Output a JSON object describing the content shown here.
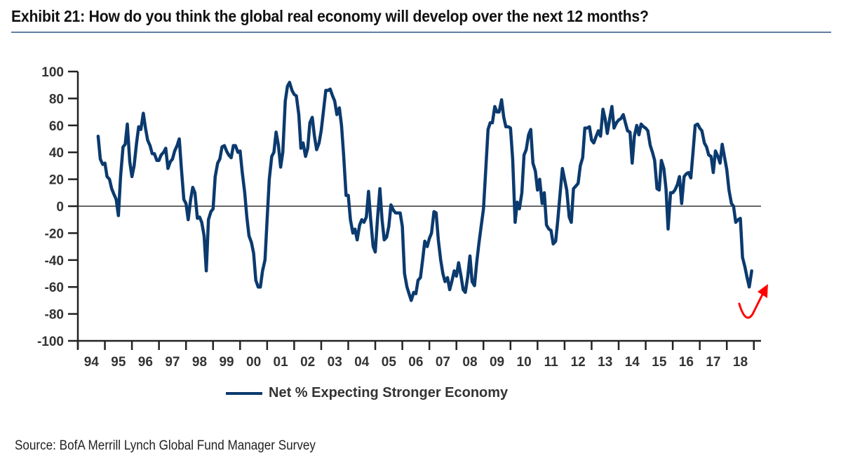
{
  "title": "Exhibit 21: How do you think the global real economy will develop over the next 12 months?",
  "source": "Source: BofA Merrill Lynch Global Fund Manager Survey",
  "colors": {
    "series": "#0b3a6e",
    "annotation_arrow": "#ff0000",
    "title_rule": "#5f7ea3",
    "axis": "#222222",
    "text": "#333333"
  },
  "chart_data": {
    "type": "line",
    "title": "How do you think the global real economy will develop over the next 12 months?",
    "xlabel": "",
    "ylabel": "",
    "ylim": [
      -100,
      100
    ],
    "xlim": [
      1994,
      2019
    ],
    "grid": false,
    "zero_line": true,
    "legend_position": "bottom-center",
    "y_ticks": [
      100,
      80,
      60,
      40,
      20,
      0,
      -20,
      -40,
      -60,
      -80,
      -100
    ],
    "x_tick_labels": [
      "94",
      "95",
      "96",
      "97",
      "98",
      "99",
      "00",
      "01",
      "02",
      "03",
      "04",
      "05",
      "06",
      "07",
      "08",
      "09",
      "10",
      "11",
      "12",
      "13",
      "14",
      "15",
      "16",
      "17",
      "18"
    ],
    "annotations": [
      {
        "type": "arrow",
        "description": "red upturn arrow indicating expected rebound",
        "near_x": 2018.9,
        "near_y": -75
      }
    ],
    "series": [
      {
        "name": "Net % Expecting Stronger Economy",
        "points": [
          [
            1994.75,
            52
          ],
          [
            1994.83,
            35
          ],
          [
            1994.92,
            31
          ],
          [
            1995.0,
            32
          ],
          [
            1995.08,
            22
          ],
          [
            1995.17,
            20
          ],
          [
            1995.25,
            13
          ],
          [
            1995.33,
            9
          ],
          [
            1995.42,
            5
          ],
          [
            1995.5,
            -7
          ],
          [
            1995.58,
            22
          ],
          [
            1995.67,
            44
          ],
          [
            1995.75,
            46
          ],
          [
            1995.83,
            61
          ],
          [
            1995.92,
            33
          ],
          [
            1996.0,
            22
          ],
          [
            1996.08,
            30
          ],
          [
            1996.17,
            47
          ],
          [
            1996.25,
            59
          ],
          [
            1996.33,
            57
          ],
          [
            1996.42,
            69
          ],
          [
            1996.5,
            58
          ],
          [
            1996.58,
            49
          ],
          [
            1996.67,
            45
          ],
          [
            1996.75,
            39
          ],
          [
            1996.83,
            39
          ],
          [
            1996.92,
            34
          ],
          [
            1997.0,
            34
          ],
          [
            1997.08,
            38
          ],
          [
            1997.17,
            40
          ],
          [
            1997.25,
            43
          ],
          [
            1997.33,
            28
          ],
          [
            1997.42,
            33
          ],
          [
            1997.5,
            35
          ],
          [
            1997.58,
            41
          ],
          [
            1997.67,
            45
          ],
          [
            1997.75,
            50
          ],
          [
            1997.83,
            28
          ],
          [
            1997.92,
            5
          ],
          [
            1998.0,
            2
          ],
          [
            1998.08,
            -10
          ],
          [
            1998.17,
            5
          ],
          [
            1998.25,
            14
          ],
          [
            1998.33,
            10
          ],
          [
            1998.42,
            -9
          ],
          [
            1998.5,
            -8
          ],
          [
            1998.58,
            -12
          ],
          [
            1998.67,
            -22
          ],
          [
            1998.75,
            -48
          ],
          [
            1998.83,
            -10
          ],
          [
            1998.92,
            -4
          ],
          [
            1999.0,
            -2
          ],
          [
            1999.08,
            22
          ],
          [
            1999.17,
            32
          ],
          [
            1999.25,
            35
          ],
          [
            1999.33,
            44
          ],
          [
            1999.42,
            45
          ],
          [
            1999.5,
            41
          ],
          [
            1999.58,
            38
          ],
          [
            1999.67,
            36
          ],
          [
            1999.75,
            45
          ],
          [
            1999.83,
            45
          ],
          [
            1999.92,
            40
          ],
          [
            2000.0,
            41
          ],
          [
            2000.08,
            25
          ],
          [
            2000.17,
            10
          ],
          [
            2000.25,
            -8
          ],
          [
            2000.33,
            -22
          ],
          [
            2000.42,
            -27
          ],
          [
            2000.5,
            -35
          ],
          [
            2000.58,
            -55
          ],
          [
            2000.67,
            -60
          ],
          [
            2000.75,
            -60
          ],
          [
            2000.83,
            -48
          ],
          [
            2000.92,
            -40
          ],
          [
            2001.0,
            -10
          ],
          [
            2001.08,
            20
          ],
          [
            2001.17,
            37
          ],
          [
            2001.25,
            40
          ],
          [
            2001.33,
            55
          ],
          [
            2001.42,
            45
          ],
          [
            2001.5,
            29
          ],
          [
            2001.58,
            40
          ],
          [
            2001.67,
            78
          ],
          [
            2001.75,
            89
          ],
          [
            2001.83,
            92
          ],
          [
            2001.92,
            86
          ],
          [
            2002.0,
            83
          ],
          [
            2002.08,
            82
          ],
          [
            2002.17,
            68
          ],
          [
            2002.25,
            43
          ],
          [
            2002.33,
            47
          ],
          [
            2002.42,
            37
          ],
          [
            2002.5,
            43
          ],
          [
            2002.58,
            62
          ],
          [
            2002.67,
            66
          ],
          [
            2002.75,
            52
          ],
          [
            2002.83,
            42
          ],
          [
            2002.92,
            47
          ],
          [
            2003.0,
            56
          ],
          [
            2003.08,
            70
          ],
          [
            2003.17,
            86
          ],
          [
            2003.25,
            86
          ],
          [
            2003.33,
            87
          ],
          [
            2003.42,
            82
          ],
          [
            2003.5,
            78
          ],
          [
            2003.58,
            68
          ],
          [
            2003.67,
            73
          ],
          [
            2003.75,
            60
          ],
          [
            2003.83,
            38
          ],
          [
            2003.92,
            8
          ],
          [
            2004.0,
            8
          ],
          [
            2004.08,
            -10
          ],
          [
            2004.17,
            -20
          ],
          [
            2004.25,
            -17
          ],
          [
            2004.33,
            -25
          ],
          [
            2004.42,
            -14
          ],
          [
            2004.5,
            -10
          ],
          [
            2004.58,
            -12
          ],
          [
            2004.67,
            -8
          ],
          [
            2004.75,
            11
          ],
          [
            2004.83,
            -10
          ],
          [
            2004.92,
            -30
          ],
          [
            2005.0,
            -34
          ],
          [
            2005.08,
            -10
          ],
          [
            2005.17,
            13
          ],
          [
            2005.25,
            -10
          ],
          [
            2005.33,
            -25
          ],
          [
            2005.42,
            -23
          ],
          [
            2005.5,
            -15
          ],
          [
            2005.58,
            1
          ],
          [
            2005.67,
            -3
          ],
          [
            2005.75,
            -5
          ],
          [
            2005.83,
            -5
          ],
          [
            2005.92,
            -5
          ],
          [
            2006.0,
            -15
          ],
          [
            2006.08,
            -50
          ],
          [
            2006.17,
            -60
          ],
          [
            2006.25,
            -65
          ],
          [
            2006.33,
            -70
          ],
          [
            2006.42,
            -64
          ],
          [
            2006.5,
            -65
          ],
          [
            2006.58,
            -55
          ],
          [
            2006.67,
            -53
          ],
          [
            2006.75,
            -40
          ],
          [
            2006.83,
            -26
          ],
          [
            2006.92,
            -30
          ],
          [
            2007.0,
            -24
          ],
          [
            2007.08,
            -20
          ],
          [
            2007.17,
            -4
          ],
          [
            2007.25,
            -5
          ],
          [
            2007.33,
            -25
          ],
          [
            2007.42,
            -40
          ],
          [
            2007.5,
            -50
          ],
          [
            2007.58,
            -56
          ],
          [
            2007.67,
            -53
          ],
          [
            2007.75,
            -62
          ],
          [
            2007.83,
            -56
          ],
          [
            2007.92,
            -48
          ],
          [
            2008.0,
            -52
          ],
          [
            2008.08,
            -42
          ],
          [
            2008.17,
            -52
          ],
          [
            2008.25,
            -62
          ],
          [
            2008.33,
            -64
          ],
          [
            2008.42,
            -52
          ],
          [
            2008.5,
            -37
          ],
          [
            2008.58,
            -56
          ],
          [
            2008.67,
            -59
          ],
          [
            2008.75,
            -42
          ],
          [
            2008.83,
            -28
          ],
          [
            2008.92,
            -14
          ],
          [
            2009.0,
            -2
          ],
          [
            2009.08,
            25
          ],
          [
            2009.17,
            57
          ],
          [
            2009.25,
            62
          ],
          [
            2009.33,
            62
          ],
          [
            2009.42,
            74
          ],
          [
            2009.5,
            70
          ],
          [
            2009.58,
            70
          ],
          [
            2009.67,
            79
          ],
          [
            2009.75,
            66
          ],
          [
            2009.83,
            59
          ],
          [
            2009.92,
            59
          ],
          [
            2010.0,
            58
          ],
          [
            2010.08,
            35
          ],
          [
            2010.17,
            -12
          ],
          [
            2010.25,
            3
          ],
          [
            2010.33,
            -2
          ],
          [
            2010.42,
            10
          ],
          [
            2010.5,
            38
          ],
          [
            2010.58,
            42
          ],
          [
            2010.67,
            53
          ],
          [
            2010.75,
            57
          ],
          [
            2010.83,
            32
          ],
          [
            2010.92,
            26
          ],
          [
            2011.0,
            12
          ],
          [
            2011.08,
            20
          ],
          [
            2011.17,
            2
          ],
          [
            2011.25,
            10
          ],
          [
            2011.33,
            -14
          ],
          [
            2011.42,
            -17
          ],
          [
            2011.5,
            -18
          ],
          [
            2011.58,
            -28
          ],
          [
            2011.67,
            -26
          ],
          [
            2011.75,
            -10
          ],
          [
            2011.83,
            8
          ],
          [
            2011.92,
            28
          ],
          [
            2012.0,
            20
          ],
          [
            2012.08,
            12
          ],
          [
            2012.17,
            -8
          ],
          [
            2012.25,
            -12
          ],
          [
            2012.33,
            13
          ],
          [
            2012.42,
            15
          ],
          [
            2012.5,
            17
          ],
          [
            2012.58,
            30
          ],
          [
            2012.67,
            36
          ],
          [
            2012.75,
            58
          ],
          [
            2012.83,
            58
          ],
          [
            2012.92,
            59
          ],
          [
            2013.0,
            49
          ],
          [
            2013.08,
            47
          ],
          [
            2013.17,
            52
          ],
          [
            2013.25,
            56
          ],
          [
            2013.33,
            52
          ],
          [
            2013.42,
            72
          ],
          [
            2013.5,
            65
          ],
          [
            2013.58,
            54
          ],
          [
            2013.67,
            65
          ],
          [
            2013.75,
            74
          ],
          [
            2013.83,
            58
          ],
          [
            2013.92,
            62
          ],
          [
            2014.0,
            64
          ],
          [
            2014.08,
            65
          ],
          [
            2014.17,
            68
          ],
          [
            2014.25,
            62
          ],
          [
            2014.33,
            56
          ],
          [
            2014.42,
            55
          ],
          [
            2014.5,
            32
          ],
          [
            2014.58,
            52
          ],
          [
            2014.67,
            60
          ],
          [
            2014.75,
            53
          ],
          [
            2014.83,
            61
          ],
          [
            2014.92,
            59
          ],
          [
            2015.0,
            58
          ],
          [
            2015.08,
            56
          ],
          [
            2015.17,
            45
          ],
          [
            2015.25,
            40
          ],
          [
            2015.33,
            34
          ],
          [
            2015.42,
            13
          ],
          [
            2015.5,
            12
          ],
          [
            2015.58,
            34
          ],
          [
            2015.67,
            28
          ],
          [
            2015.75,
            13
          ],
          [
            2015.83,
            -17
          ],
          [
            2015.92,
            10
          ],
          [
            2016.0,
            10
          ],
          [
            2016.08,
            12
          ],
          [
            2016.17,
            16
          ],
          [
            2016.25,
            22
          ],
          [
            2016.33,
            2
          ],
          [
            2016.42,
            22
          ],
          [
            2016.5,
            24
          ],
          [
            2016.58,
            25
          ],
          [
            2016.67,
            21
          ],
          [
            2016.75,
            40
          ],
          [
            2016.83,
            60
          ],
          [
            2016.92,
            61
          ],
          [
            2017.0,
            58
          ],
          [
            2017.08,
            56
          ],
          [
            2017.17,
            47
          ],
          [
            2017.25,
            44
          ],
          [
            2017.33,
            38
          ],
          [
            2017.42,
            37
          ],
          [
            2017.5,
            25
          ],
          [
            2017.58,
            41
          ],
          [
            2017.67,
            37
          ],
          [
            2017.75,
            32
          ],
          [
            2017.83,
            46
          ],
          [
            2017.92,
            36
          ],
          [
            2018.0,
            27
          ],
          [
            2018.08,
            12
          ],
          [
            2018.17,
            2
          ],
          [
            2018.25,
            0
          ],
          [
            2018.33,
            -12
          ],
          [
            2018.42,
            -10
          ],
          [
            2018.5,
            -9
          ],
          [
            2018.58,
            -38
          ],
          [
            2018.67,
            -45
          ],
          [
            2018.75,
            -53
          ],
          [
            2018.83,
            -60
          ],
          [
            2018.92,
            -48
          ]
        ]
      }
    ]
  }
}
